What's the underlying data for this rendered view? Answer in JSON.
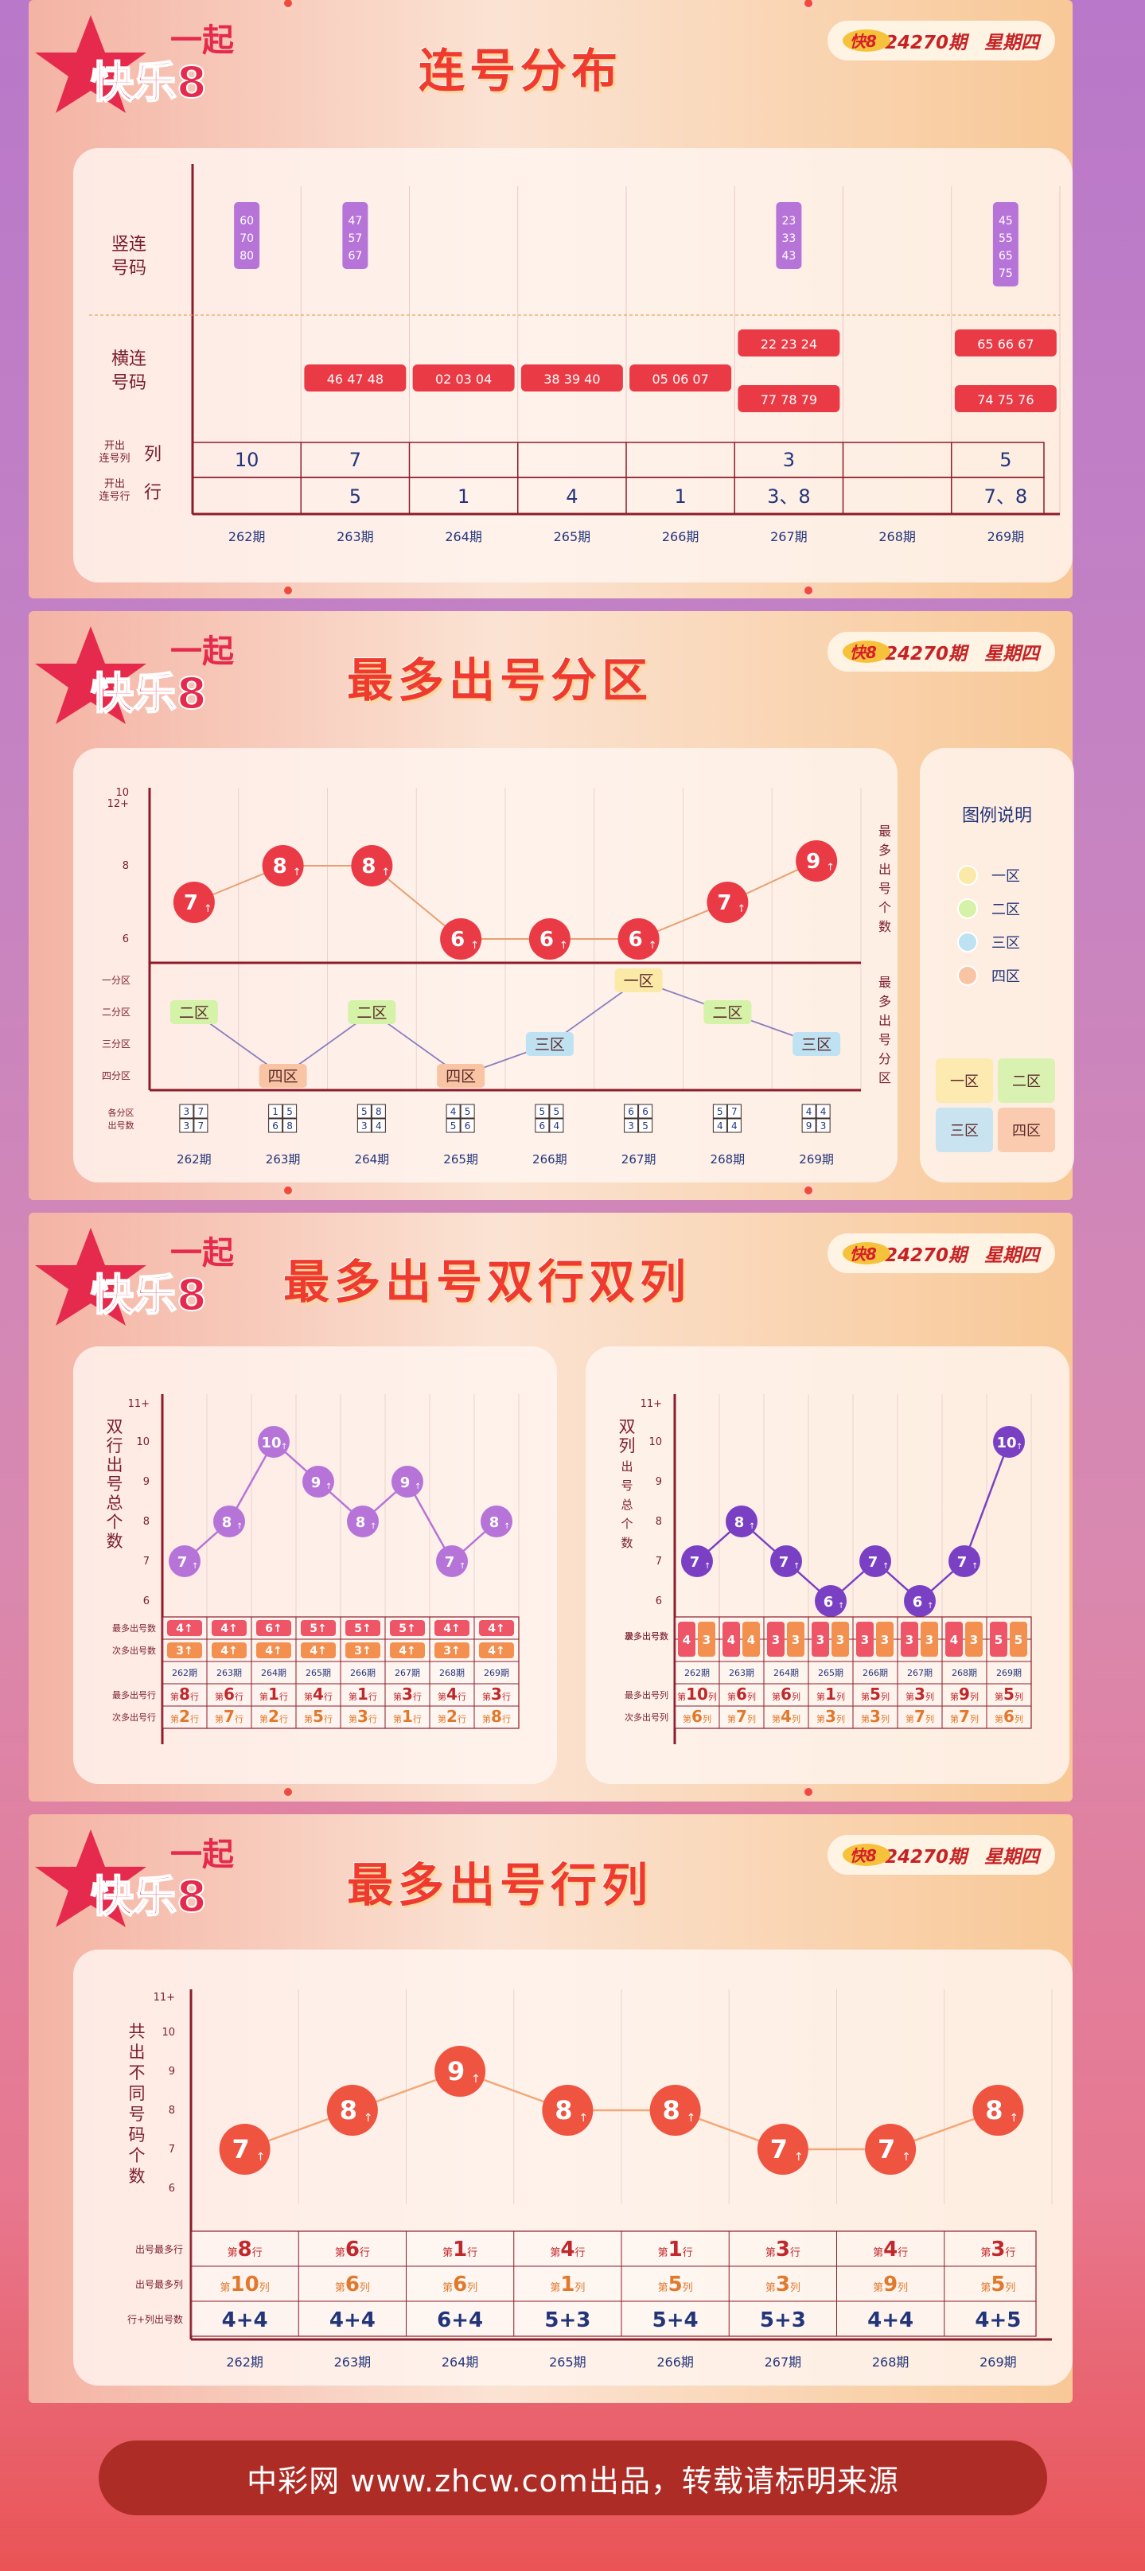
{
  "brand": {
    "logo_top": "一起",
    "logo_main": "快乐8"
  },
  "issue": {
    "number": "24270期",
    "weekday": "星期四"
  },
  "periods": [
    "262期",
    "263期",
    "264期",
    "265期",
    "266期",
    "267期",
    "268期",
    "269期"
  ],
  "sections": [
    {
      "title": "连号分布"
    },
    {
      "title": "最多出号分区"
    },
    {
      "title": "最多出号双行双列"
    },
    {
      "title": "最多出号行列"
    }
  ],
  "footer": {
    "text": "中彩网 www.zhcw.com出品，转载请标明来源"
  },
  "colors": {
    "red_ball": "#ea3a45",
    "purple_ball": "#b774d8",
    "violet_ball": "#7a40c4",
    "accent": "#c0282c"
  },
  "chart_data": [
    {
      "type": "table",
      "title": "连号分布",
      "row_labels": {
        "vertical": "竖连号码",
        "horizontal": "横连号码",
        "col_count": "开出连号列",
        "col_word": "列",
        "row_count": "开出连号行",
        "row_word": "行"
      },
      "vertical": [
        [
          "60",
          "70",
          "80"
        ],
        [
          "47",
          "57",
          "67"
        ],
        [],
        [],
        [],
        [
          "23",
          "33",
          "43"
        ],
        [],
        [
          "45",
          "55",
          "65",
          "75"
        ]
      ],
      "horizontal": [
        [],
        [
          "46 47 48"
        ],
        [
          "02 03 04"
        ],
        [
          "38 39 40"
        ],
        [
          "05 06 07"
        ],
        [
          "22 23 24",
          "77 78 79"
        ],
        [],
        [
          "65 66 67",
          "74 75 76"
        ]
      ],
      "col_count": [
        "10",
        "7",
        "",
        "",
        "",
        "3",
        "",
        "5"
      ],
      "row_count": [
        "",
        "5",
        "1",
        "4",
        "1",
        "3、8",
        "",
        "7、8"
      ]
    },
    {
      "type": "line",
      "title": "最多出号分区",
      "y_label": "最多出号个数",
      "y_ticks": [
        "12+",
        "10",
        "8",
        "6"
      ],
      "ylim": [
        5,
        12
      ],
      "values": [
        7,
        8,
        8,
        6,
        6,
        6,
        7,
        9
      ],
      "zone_label": "最多出号分区",
      "zone_ticks": [
        "一分区",
        "二分区",
        "三分区",
        "四分区"
      ],
      "zones": [
        "二区",
        "四区",
        "二区",
        "四区",
        "三区",
        "一区",
        "二区",
        "三区"
      ],
      "zone_counts_label": [
        "各分区",
        "出号数"
      ],
      "zone_counts": [
        [
          "3",
          "7",
          "3",
          "7"
        ],
        [
          "1",
          "5",
          "6",
          "8"
        ],
        [
          "5",
          "8",
          "3",
          "4"
        ],
        [
          "4",
          "5",
          "5",
          "6"
        ],
        [
          "5",
          "5",
          "6",
          "4"
        ],
        [
          "6",
          "6",
          "3",
          "5"
        ],
        [
          "5",
          "7",
          "4",
          "4"
        ],
        [
          "4",
          "4",
          "9",
          "3"
        ]
      ],
      "legend": {
        "title": "图例说明",
        "items": [
          "一区",
          "二区",
          "三区",
          "四区"
        ],
        "grid": [
          "一区",
          "二区",
          "三区",
          "四区"
        ]
      }
    },
    {
      "type": "line",
      "title": "双行",
      "y_label": "双行出号总个数",
      "y_ticks": [
        "11+",
        "10",
        "9",
        "8",
        "7",
        "6"
      ],
      "ylim": [
        6,
        11
      ],
      "values": [
        7,
        8,
        10,
        9,
        8,
        9,
        7,
        8
      ],
      "row_labels": [
        "最多出号数",
        "次多出号数",
        "",
        "最多出号行",
        "次多出号行"
      ],
      "max_counts": [
        [
          "4",
          "4"
        ],
        [
          "4",
          "4"
        ],
        [
          "6",
          "5"
        ],
        [
          "5",
          "5"
        ],
        [
          "5",
          "5"
        ],
        [
          "5",
          "4"
        ],
        [
          "4",
          "4"
        ],
        [
          "4",
          "4"
        ]
      ],
      "second_counts": [
        [
          "3",
          "4"
        ],
        [
          "4",
          "4"
        ],
        [
          "4",
          "4"
        ],
        [
          "4",
          "4"
        ],
        [
          "3",
          "5"
        ],
        [
          "4",
          "3"
        ],
        [
          "3",
          "4"
        ],
        [
          "4",
          "4"
        ]
      ],
      "max_rows": [
        "8",
        "6",
        "1",
        "4",
        "1",
        "3",
        "4",
        "3"
      ],
      "second_rows": [
        "2",
        "7",
        "2",
        "5",
        "3",
        "1",
        "2",
        "8"
      ],
      "prefix": "第",
      "unit": "行"
    },
    {
      "type": "line",
      "title": "双列",
      "y_label": "双列出号总个数",
      "y_ticks": [
        "11+",
        "10",
        "9",
        "8",
        "7",
        "6"
      ],
      "ylim": [
        6,
        11
      ],
      "values": [
        7,
        8,
        7,
        6,
        7,
        6,
        7,
        10
      ],
      "row_labels": [
        "最多出号数",
        "次多出号数",
        "",
        "最多出号列",
        "次多出号列"
      ],
      "max_counts": [
        [
          "4",
          "3"
        ],
        [
          "4",
          "4"
        ],
        [
          "3",
          "3"
        ],
        [
          "3",
          "3"
        ],
        [
          "3",
          "3"
        ],
        [
          "3",
          "3"
        ],
        [
          "4",
          "3"
        ],
        [
          "5",
          "5"
        ]
      ],
      "max_rows": [
        "10",
        "6",
        "6",
        "1",
        "5",
        "3",
        "9",
        "5"
      ],
      "second_rows": [
        "6",
        "7",
        "4",
        "3",
        "3",
        "7",
        "7",
        "6"
      ],
      "prefix": "第",
      "unit": "列"
    },
    {
      "type": "line",
      "title": "最多出号行列",
      "y_label": "共出不同号码个数",
      "y_ticks": [
        "11+",
        "10",
        "9",
        "8",
        "7",
        "6"
      ],
      "ylim": [
        6,
        11
      ],
      "values": [
        7,
        8,
        9,
        8,
        8,
        7,
        7,
        8
      ],
      "row_labels": [
        "出号最多行",
        "出号最多列",
        "行+列出号数"
      ],
      "max_rows": [
        "8",
        "6",
        "1",
        "4",
        "1",
        "3",
        "4",
        "3"
      ],
      "max_cols": [
        "10",
        "6",
        "6",
        "1",
        "5",
        "3",
        "9",
        "5"
      ],
      "sums": [
        "4+4",
        "4+4",
        "6+4",
        "5+3",
        "5+4",
        "5+3",
        "4+4",
        "4+5"
      ],
      "prefix": "第",
      "row_unit": "行",
      "col_unit": "列"
    }
  ]
}
